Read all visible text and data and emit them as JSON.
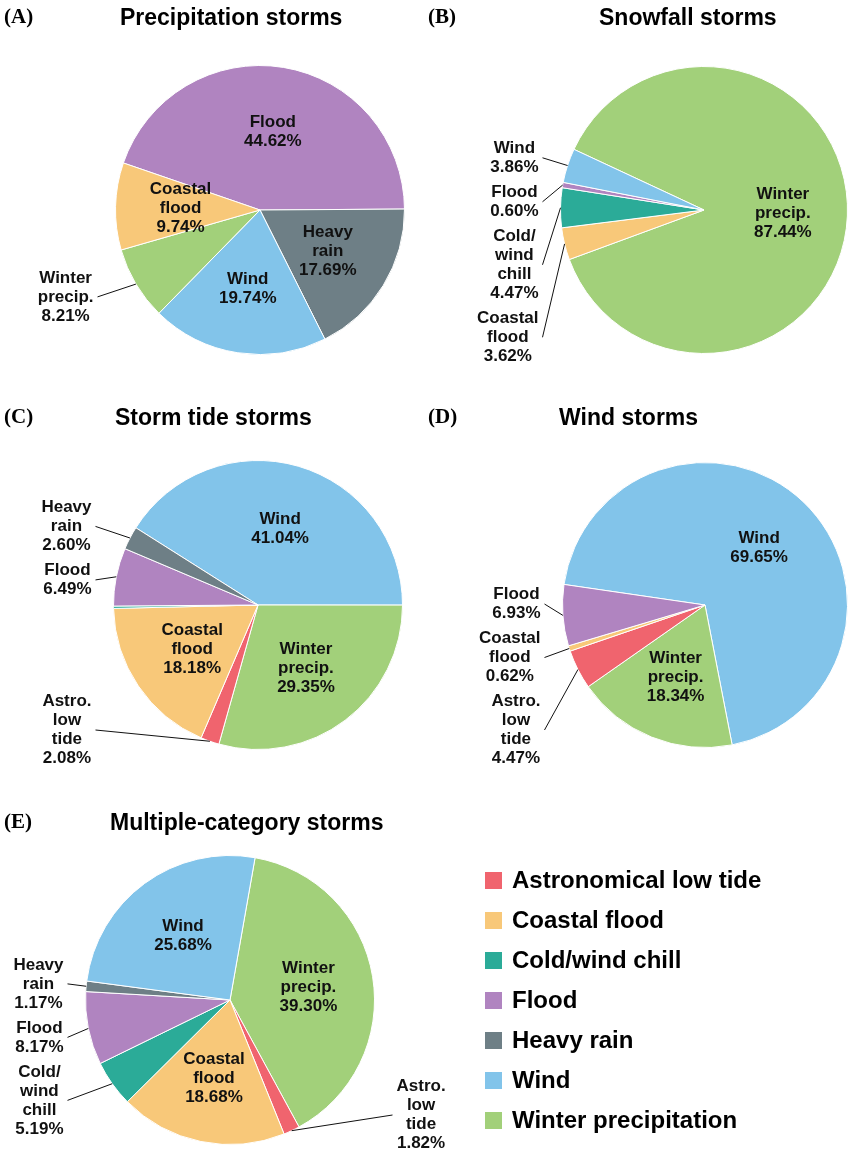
{
  "chart_data": [
    {
      "type": "pie",
      "title": "Precipitation storms",
      "annotations": [
        "(A)"
      ],
      "categories": [
        "Flood",
        "Heavy rain",
        "Wind",
        "Winter precip.",
        "Coastal flood"
      ],
      "values": [
        44.62,
        17.69,
        19.74,
        8.21,
        9.74
      ],
      "value_labels": [
        "44.62%",
        "17.69%",
        "19.74%",
        "8.21%",
        "9.74%"
      ],
      "colors": [
        "#b084c0",
        "#6e7f86",
        "#82c4ea",
        "#a2d07a",
        "#f8c879"
      ]
    },
    {
      "type": "pie",
      "title": "Snowfall storms",
      "annotations": [
        "(B)"
      ],
      "categories": [
        "Winter precip.",
        "Coastal flood",
        "Cold/wind chill",
        "Flood",
        "Wind"
      ],
      "values": [
        87.44,
        3.62,
        4.47,
        0.6,
        3.86
      ],
      "value_labels": [
        "87.44%",
        "3.62%",
        "4.47%",
        "0.60%",
        "3.86%"
      ],
      "colors": [
        "#a2d07a",
        "#f8c879",
        "#2bab98",
        "#b084c0",
        "#82c4ea"
      ]
    },
    {
      "type": "pie",
      "title": "Storm tide storms",
      "annotations": [
        "(C)"
      ],
      "categories": [
        "Wind",
        "Winter precip.",
        "Astro. low tide",
        "Coastal flood",
        null,
        "Flood",
        "Heavy rain"
      ],
      "values": [
        41.04,
        29.35,
        2.08,
        18.18,
        0.26,
        6.49,
        2.6
      ],
      "value_labels": [
        "41.04%",
        "29.35%",
        "2.08%",
        "18.18%",
        null,
        "6.49%",
        "2.60%"
      ],
      "colors": [
        "#82c4ea",
        "#a2d07a",
        "#f0646e",
        "#f8c879",
        "#2bab98",
        "#b084c0",
        "#6e7f86"
      ]
    },
    {
      "type": "pie",
      "title": "Wind storms",
      "annotations": [
        "(D)"
      ],
      "categories": [
        "Wind",
        "Winter precip.",
        "Astro. low tide",
        "Coastal flood",
        "Flood"
      ],
      "values": [
        69.65,
        18.34,
        4.47,
        0.62,
        6.93
      ],
      "value_labels": [
        "69.65%",
        "18.34%",
        "4.47%",
        "0.62%",
        "6.93%"
      ],
      "colors": [
        "#82c4ea",
        "#a2d07a",
        "#f0646e",
        "#f8c879",
        "#b084c0"
      ]
    },
    {
      "type": "pie",
      "title": "Multiple-category storms",
      "annotations": [
        "(E)"
      ],
      "categories": [
        "Winter precip.",
        "Astro. low tide",
        "Coastal flood",
        "Cold/wind chill",
        "Flood",
        "Heavy rain",
        "Wind"
      ],
      "values": [
        39.3,
        1.82,
        18.68,
        5.19,
        8.17,
        1.17,
        25.68
      ],
      "value_labels": [
        "39.30%",
        "1.82%",
        "18.68%",
        "5.19%",
        "8.17%",
        "1.17%",
        "25.68%"
      ],
      "colors": [
        "#a2d07a",
        "#f0646e",
        "#f8c879",
        "#2bab98",
        "#b084c0",
        "#6e7f86",
        "#82c4ea"
      ]
    },
    {
      "type": "other",
      "categories": [
        "Astronomical low tide",
        "Coastal flood",
        "Cold/wind chill",
        "Flood",
        "Heavy rain",
        "Wind",
        "Winter precipitation"
      ],
      "colors": [
        "#f0646e",
        "#f8c879",
        "#2bab98",
        "#b084c0",
        "#6e7f86",
        "#82c4ea",
        "#a2d07a"
      ]
    }
  ]
}
